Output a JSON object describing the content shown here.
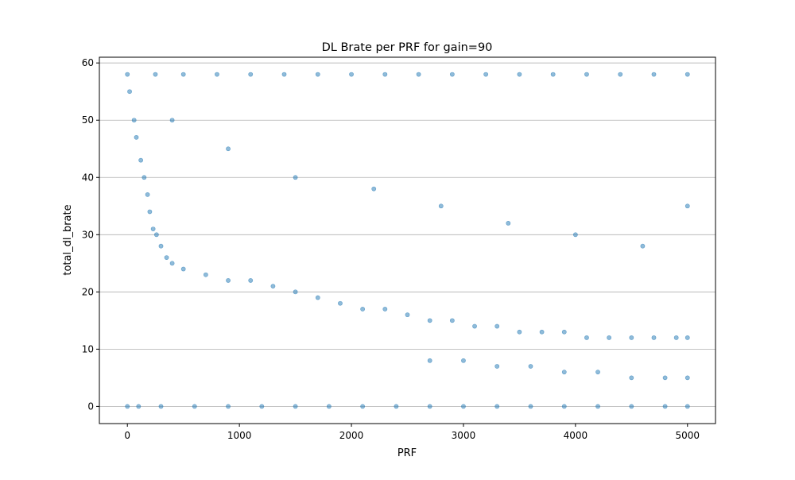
{
  "chart_data": {
    "type": "scatter",
    "title": "DL Brate per PRF for gain=90",
    "xlabel": "PRF",
    "ylabel": "total_dl_brate",
    "xlim": [
      -250,
      5250
    ],
    "ylim": [
      -3,
      61
    ],
    "xticks": [
      0,
      1000,
      2000,
      3000,
      4000,
      5000
    ],
    "yticks": [
      0,
      10,
      20,
      30,
      40,
      50,
      60
    ],
    "grid": "y-axis only",
    "marker_color": "#1f77b4",
    "marker_alpha": 0.5,
    "series": [
      {
        "points": [
          [
            0,
            0
          ],
          [
            100,
            0
          ],
          [
            300,
            0
          ],
          [
            600,
            0
          ],
          [
            900,
            0
          ],
          [
            1200,
            0
          ],
          [
            1500,
            0
          ],
          [
            1800,
            0
          ],
          [
            2100,
            0
          ],
          [
            2400,
            0
          ],
          [
            2700,
            0
          ],
          [
            3000,
            0
          ],
          [
            3300,
            0
          ],
          [
            3600,
            0
          ],
          [
            3900,
            0
          ],
          [
            4200,
            0
          ],
          [
            4500,
            0
          ],
          [
            4800,
            0
          ],
          [
            5000,
            0
          ],
          [
            0,
            58
          ],
          [
            250,
            58
          ],
          [
            500,
            58
          ],
          [
            800,
            58
          ],
          [
            1100,
            58
          ],
          [
            1400,
            58
          ],
          [
            1700,
            58
          ],
          [
            2000,
            58
          ],
          [
            2300,
            58
          ],
          [
            2600,
            58
          ],
          [
            2900,
            58
          ],
          [
            3200,
            58
          ],
          [
            3500,
            58
          ],
          [
            3800,
            58
          ],
          [
            4100,
            58
          ],
          [
            4400,
            58
          ],
          [
            4700,
            58
          ],
          [
            5000,
            58
          ],
          [
            20,
            55
          ],
          [
            60,
            50
          ],
          [
            80,
            47
          ],
          [
            120,
            43
          ],
          [
            150,
            40
          ],
          [
            180,
            37
          ],
          [
            200,
            34
          ],
          [
            230,
            31
          ],
          [
            260,
            30
          ],
          [
            300,
            28
          ],
          [
            350,
            26
          ],
          [
            400,
            25
          ],
          [
            500,
            24
          ],
          [
            700,
            23
          ],
          [
            900,
            22
          ],
          [
            1100,
            22
          ],
          [
            1300,
            21
          ],
          [
            1500,
            20
          ],
          [
            1700,
            19
          ],
          [
            1900,
            18
          ],
          [
            2100,
            17
          ],
          [
            2300,
            17
          ],
          [
            2500,
            16
          ],
          [
            2700,
            15
          ],
          [
            2900,
            15
          ],
          [
            3100,
            14
          ],
          [
            3300,
            14
          ],
          [
            3500,
            13
          ],
          [
            3700,
            13
          ],
          [
            3900,
            13
          ],
          [
            4100,
            12
          ],
          [
            4300,
            12
          ],
          [
            4500,
            12
          ],
          [
            4700,
            12
          ],
          [
            4900,
            12
          ],
          [
            5000,
            12
          ],
          [
            2700,
            8
          ],
          [
            3000,
            8
          ],
          [
            3300,
            7
          ],
          [
            3600,
            7
          ],
          [
            3900,
            6
          ],
          [
            4200,
            6
          ],
          [
            4500,
            5
          ],
          [
            4800,
            5
          ],
          [
            5000,
            5
          ],
          [
            400,
            50
          ],
          [
            900,
            45
          ],
          [
            1500,
            40
          ],
          [
            2200,
            38
          ],
          [
            2800,
            35
          ],
          [
            3400,
            32
          ],
          [
            4000,
            30
          ],
          [
            4600,
            28
          ],
          [
            5000,
            35
          ]
        ]
      }
    ]
  }
}
